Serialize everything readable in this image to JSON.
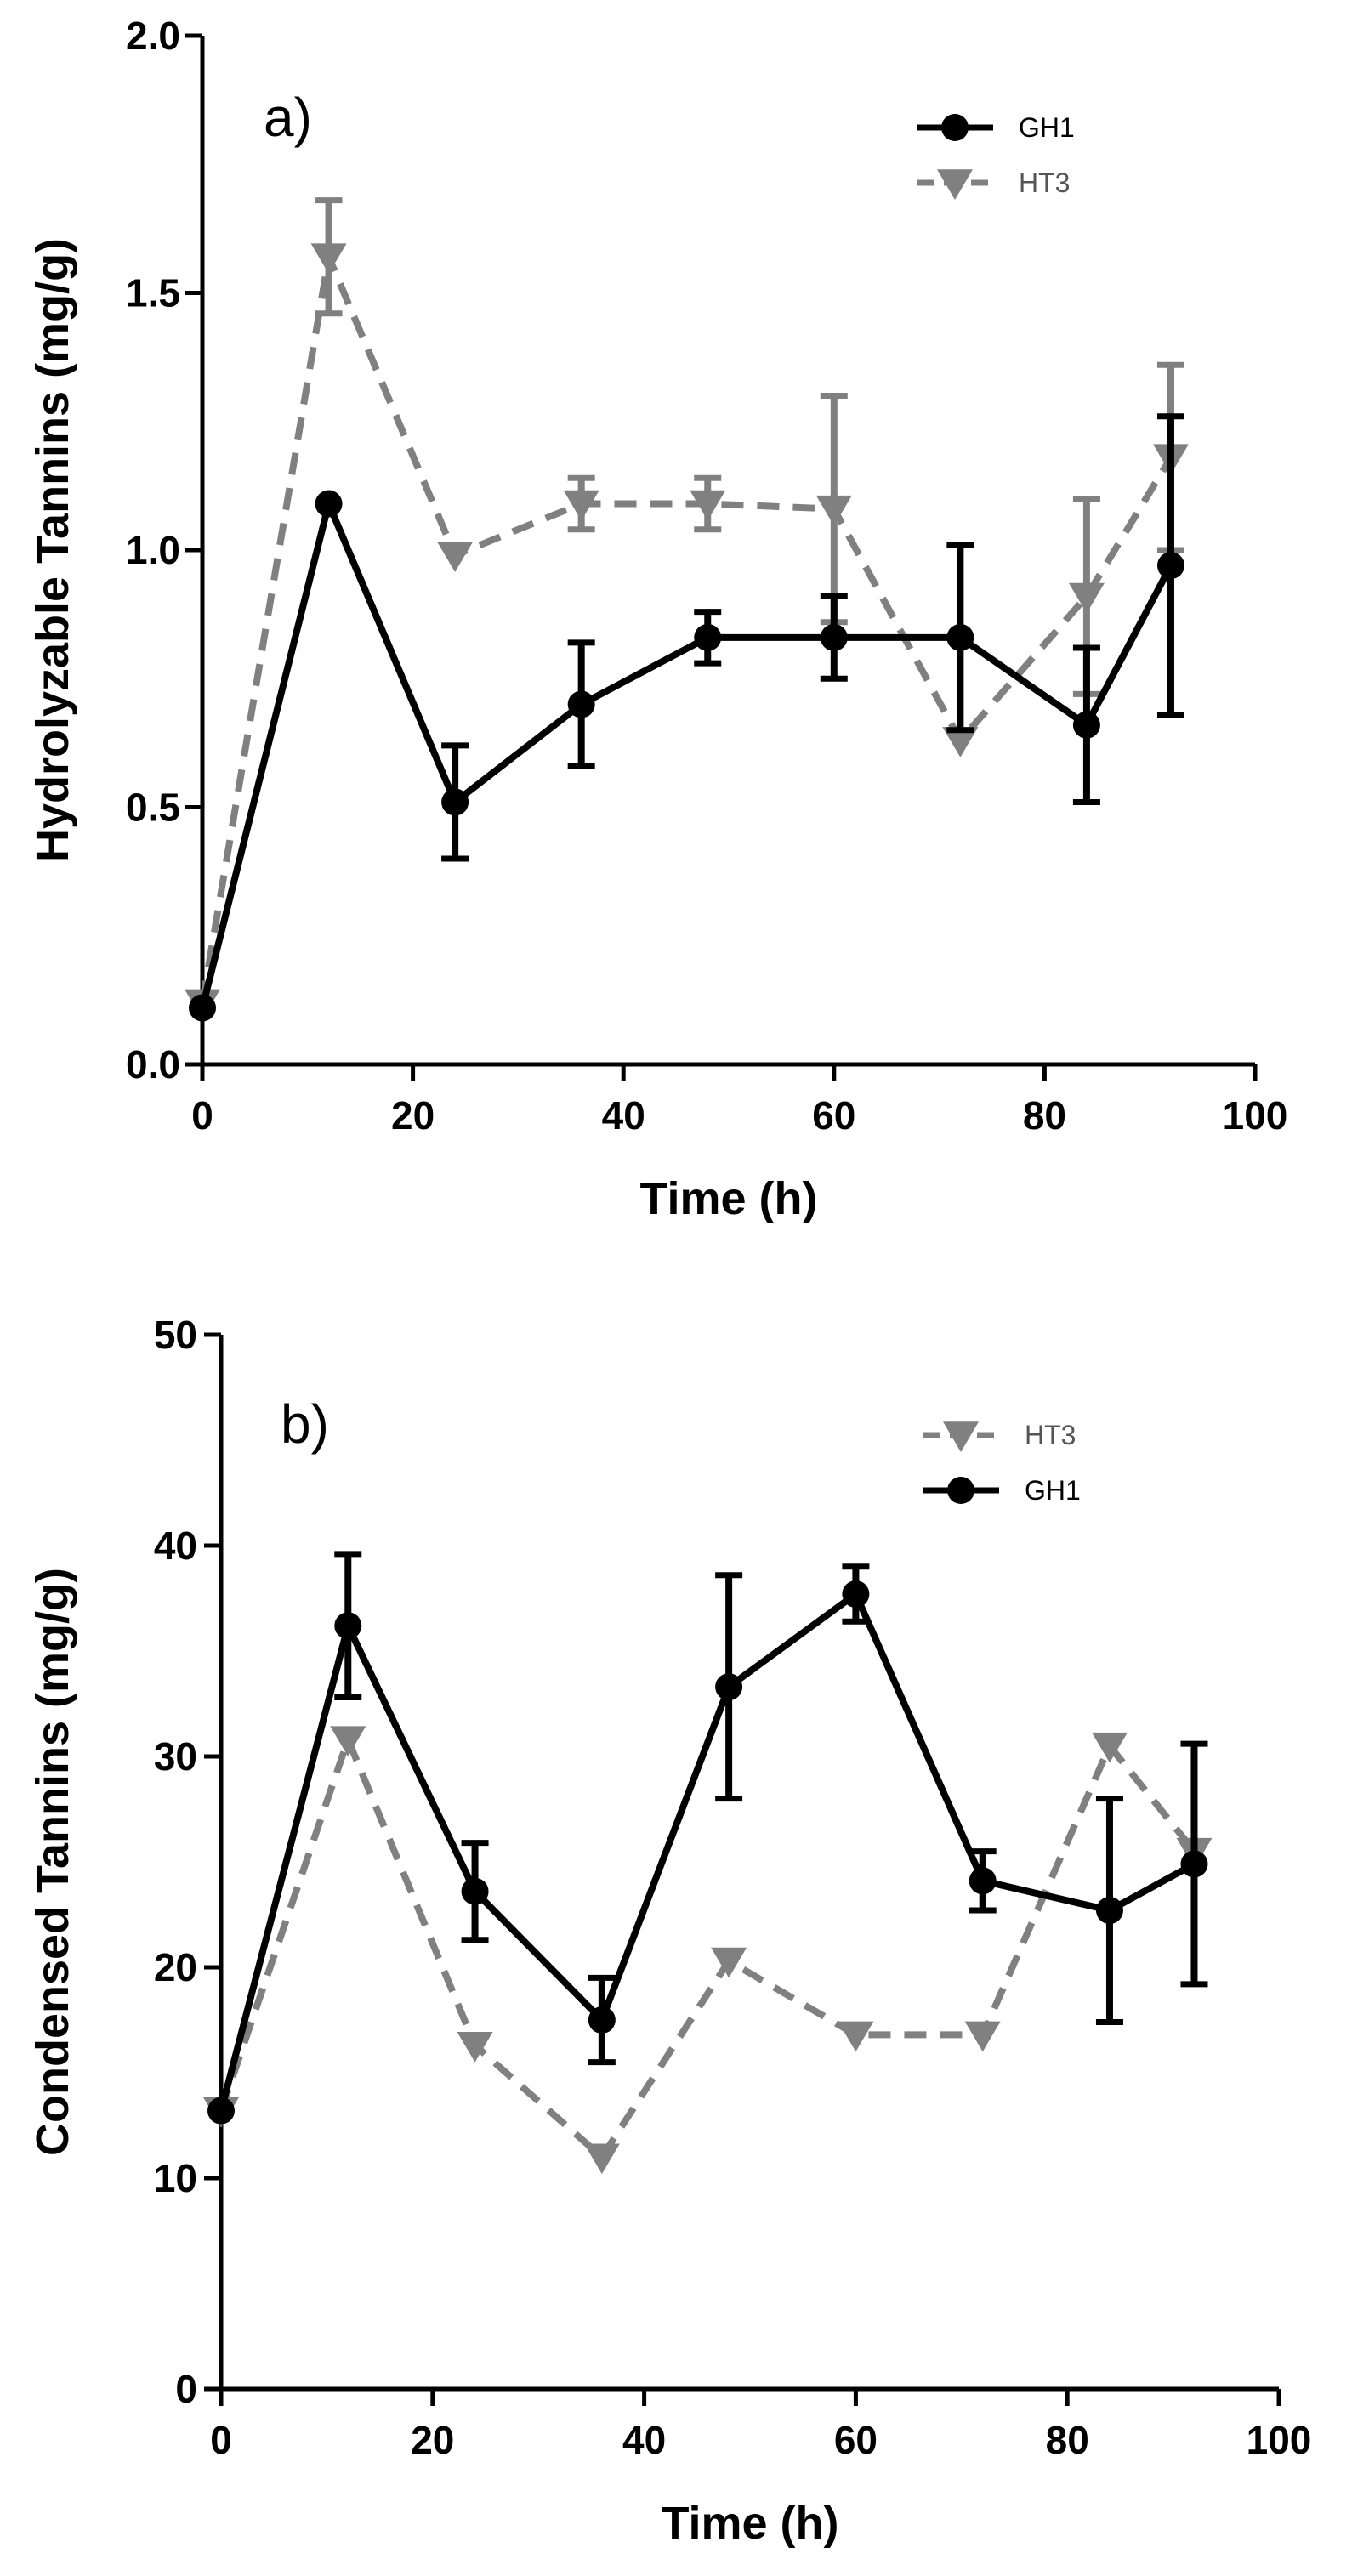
{
  "chart_data": [
    {
      "type": "line",
      "panel_label": "a)",
      "xlabel": "Time (h)",
      "ylabel": "Hydrolyzable Tannins (mg/g)",
      "xlim": [
        0,
        100
      ],
      "ylim": [
        0,
        2.0
      ],
      "xticks": [
        "0",
        "20",
        "40",
        "60",
        "80",
        "100"
      ],
      "yticks": [
        "0.0",
        "0.5",
        "1.0",
        "1.5",
        "2.0"
      ],
      "grid": false,
      "legend_position": "top-right",
      "legend": [
        "GH1",
        "HT3"
      ],
      "series": [
        {
          "name": "GH1",
          "color": "#000000",
          "marker": "circle",
          "line": "solid",
          "x": [
            0,
            12,
            24,
            36,
            48,
            60,
            72,
            84,
            92
          ],
          "y": [
            0.11,
            1.09,
            0.51,
            0.7,
            0.83,
            0.83,
            0.83,
            0.66,
            0.97
          ],
          "err": [
            0,
            0,
            0.11,
            0.12,
            0.05,
            0.08,
            0.18,
            0.15,
            0.29
          ]
        },
        {
          "name": "HT3",
          "color": "#808080",
          "marker": "triangle-down",
          "line": "dashed",
          "x": [
            0,
            12,
            24,
            36,
            48,
            60,
            72,
            84,
            92
          ],
          "y": [
            0.12,
            1.57,
            0.99,
            1.09,
            1.09,
            1.08,
            0.63,
            0.91,
            1.18
          ],
          "err": [
            0,
            0.11,
            0,
            0.05,
            0.05,
            0.22,
            0,
            0.19,
            0.18
          ]
        }
      ]
    },
    {
      "type": "line",
      "panel_label": "b)",
      "xlabel": "Time (h)",
      "ylabel": "Condensed Tannins (mg/g)",
      "xlim": [
        0,
        100
      ],
      "ylim": [
        0,
        50
      ],
      "xticks": [
        "0",
        "20",
        "40",
        "60",
        "80",
        "100"
      ],
      "yticks": [
        "0",
        "10",
        "20",
        "30",
        "40",
        "50"
      ],
      "grid": false,
      "legend_position": "top-right",
      "legend": [
        "HT3",
        "GH1"
      ],
      "series": [
        {
          "name": "HT3",
          "color": "#808080",
          "marker": "triangle-down",
          "line": "dashed",
          "x": [
            0,
            12,
            24,
            36,
            48,
            60,
            72,
            84,
            92
          ],
          "y": [
            13.2,
            30.8,
            16.3,
            11.0,
            20.3,
            16.8,
            16.8,
            30.5,
            25.5
          ],
          "err": [
            0,
            0,
            0,
            0,
            0,
            0,
            0,
            0,
            0
          ]
        },
        {
          "name": "GH1",
          "color": "#000000",
          "marker": "circle",
          "line": "solid",
          "x": [
            0,
            12,
            24,
            36,
            48,
            60,
            72,
            84,
            92
          ],
          "y": [
            13.2,
            36.2,
            23.6,
            17.5,
            33.3,
            37.7,
            24.1,
            22.7,
            24.9
          ],
          "err": [
            0,
            3.4,
            2.3,
            2.0,
            5.3,
            1.3,
            1.4,
            5.3,
            5.7
          ]
        }
      ]
    }
  ]
}
